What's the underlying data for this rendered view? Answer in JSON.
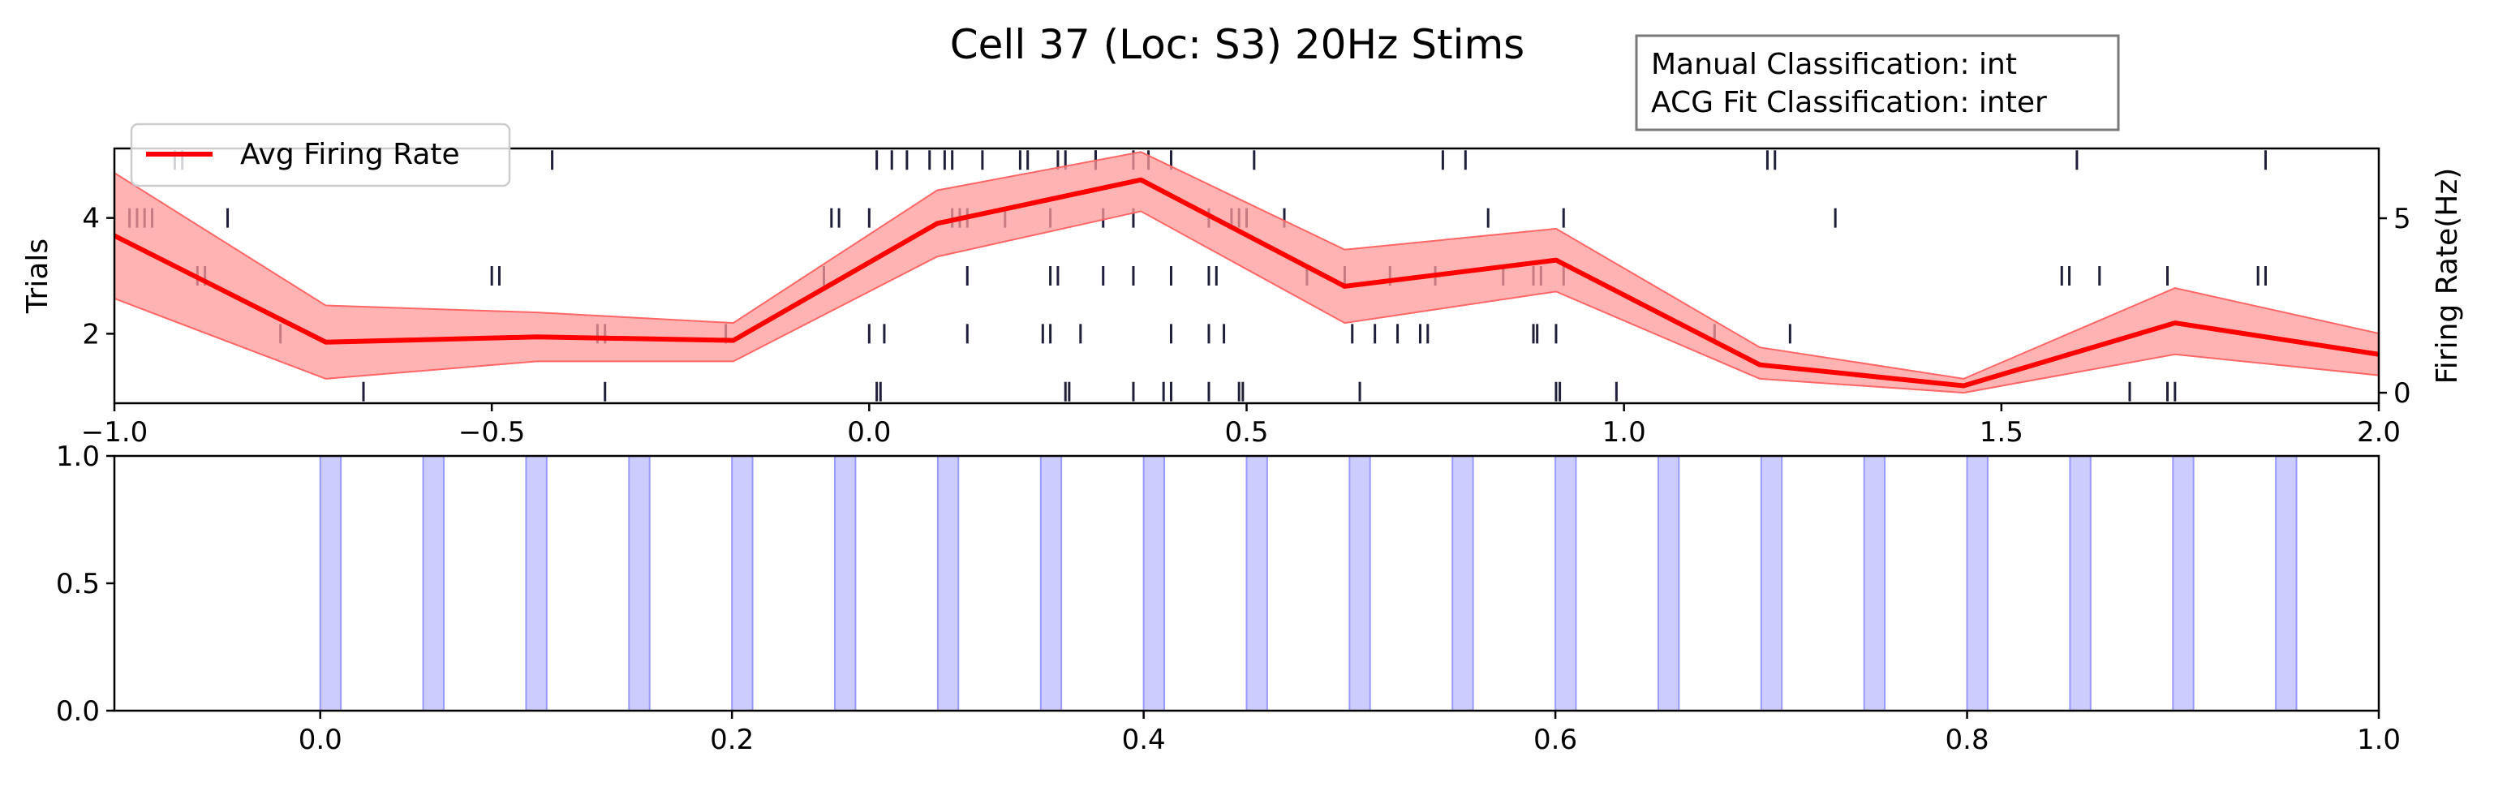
{
  "chart_data": {
    "title": "Cell 37 (Loc: S3) 20Hz Stims",
    "annotation": [
      "Manual Classification: int",
      "ACG Fit Classification: inter"
    ],
    "top_panel": {
      "type": "line",
      "xlim": [
        -1.0,
        2.0
      ],
      "x_ticks": [
        "−1.0",
        "−0.5",
        "0.0",
        "0.5",
        "1.0",
        "1.5",
        "2.0"
      ],
      "x_tick_values": [
        -1.0,
        -0.5,
        0.0,
        0.5,
        1.0,
        1.5,
        2.0
      ],
      "left_axis": {
        "label": "Trials",
        "ylim": [
          0.8,
          5.2
        ],
        "ticks": [
          2,
          4
        ]
      },
      "right_axis": {
        "label": "Firing Rate(Hz)",
        "ylim": [
          -0.3,
          7.0
        ],
        "ticks": [
          0,
          5
        ]
      },
      "legend": {
        "entries": [
          "Avg Firing Rate"
        ],
        "placement": "top-left",
        "color": "#ff0000"
      },
      "firing_rate": {
        "name": "Avg Firing Rate",
        "color": "#ff0000",
        "band_color": "#ff9999",
        "x": [
          -1.0,
          -0.72,
          -0.44,
          -0.18,
          0.09,
          0.36,
          0.63,
          0.91,
          1.18,
          1.45,
          1.73,
          2.0
        ],
        "y": [
          4.5,
          1.45,
          1.6,
          1.5,
          4.85,
          6.1,
          3.05,
          3.8,
          0.8,
          0.2,
          2.0,
          1.1
        ],
        "upper": [
          6.3,
          2.5,
          2.3,
          2.0,
          5.8,
          6.9,
          4.1,
          4.7,
          1.3,
          0.4,
          3.0,
          1.7
        ],
        "lower": [
          2.7,
          0.4,
          0.9,
          0.9,
          3.9,
          5.2,
          2.0,
          2.9,
          0.4,
          0.0,
          1.1,
          0.5
        ]
      },
      "raster": {
        "color": "#1f1f3a",
        "trials": [
          {
            "trial": 1,
            "times": [
              -0.67,
              -0.35,
              0.01,
              0.015,
              0.26,
              0.265,
              0.35,
              0.39,
              0.4,
              0.45,
              0.49,
              0.495,
              0.65,
              0.91,
              0.915,
              0.99,
              1.67,
              1.72,
              1.73
            ]
          },
          {
            "trial": 2,
            "times": [
              -0.78,
              -0.36,
              -0.35,
              -0.19,
              0.0,
              0.02,
              0.13,
              0.23,
              0.24,
              0.28,
              0.4,
              0.45,
              0.47,
              0.64,
              0.67,
              0.7,
              0.73,
              0.74,
              0.88,
              0.885,
              0.91,
              1.12,
              1.22
            ]
          },
          {
            "trial": 3,
            "times": [
              -0.89,
              -0.88,
              -0.5,
              -0.49,
              -0.06,
              0.13,
              0.24,
              0.25,
              0.31,
              0.35,
              0.4,
              0.45,
              0.46,
              0.58,
              0.63,
              0.69,
              0.75,
              0.84,
              0.88,
              0.89,
              0.92,
              1.58,
              1.59,
              1.63,
              1.72,
              1.84,
              1.85
            ]
          },
          {
            "trial": 4,
            "times": [
              -0.98,
              -0.97,
              -0.96,
              -0.95,
              -0.85,
              -0.05,
              -0.04,
              0.0,
              0.11,
              0.12,
              0.13,
              0.18,
              0.24,
              0.31,
              0.35,
              0.45,
              0.48,
              0.49,
              0.5,
              0.55,
              0.82,
              0.92,
              1.28
            ]
          },
          {
            "trial": 5,
            "times": [
              -0.92,
              -0.91,
              -0.42,
              0.01,
              0.03,
              0.05,
              0.08,
              0.1,
              0.11,
              0.15,
              0.2,
              0.21,
              0.25,
              0.26,
              0.3,
              0.3,
              0.35,
              0.37,
              0.4,
              0.51,
              0.76,
              0.79,
              1.19,
              1.2,
              1.6,
              1.85
            ]
          }
        ]
      }
    },
    "bottom_panel": {
      "type": "bar",
      "xlim": [
        -0.1,
        1.0
      ],
      "ylim": [
        0.0,
        1.0
      ],
      "x_ticks": [
        "0.0",
        "0.2",
        "0.4",
        "0.6",
        "0.8",
        "1.0"
      ],
      "x_tick_values": [
        0.0,
        0.2,
        0.4,
        0.6,
        0.8,
        1.0
      ],
      "y_ticks": [
        "0.0",
        "0.5",
        "1.0"
      ],
      "y_tick_values": [
        0.0,
        0.5,
        1.0
      ],
      "stim_color": "#9999ff",
      "stim_starts": [
        0.0,
        0.05,
        0.1,
        0.15,
        0.2,
        0.25,
        0.3,
        0.35,
        0.4,
        0.45,
        0.5,
        0.55,
        0.6,
        0.65,
        0.7,
        0.75,
        0.8,
        0.85,
        0.9,
        0.95
      ],
      "stim_width": 0.01
    }
  }
}
